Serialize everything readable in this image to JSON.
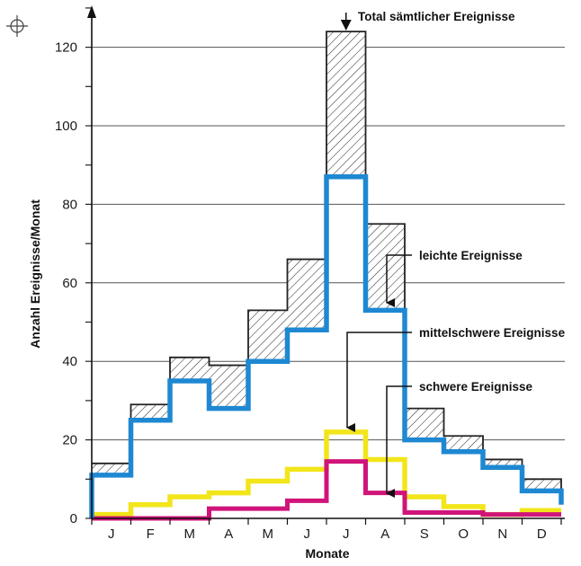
{
  "chart_data": {
    "type": "line",
    "title": "",
    "xlabel": "Monate",
    "ylabel": "Anzahl Ereignisse/Monat",
    "categories": [
      "J",
      "F",
      "M",
      "A",
      "M",
      "J",
      "J",
      "A",
      "S",
      "O",
      "N",
      "D"
    ],
    "ylim": [
      0,
      130
    ],
    "yticks": [
      0,
      20,
      40,
      60,
      80,
      100,
      120
    ],
    "grid": true,
    "series": [
      {
        "name": "Total sämtlicher Ereignisse",
        "style": "hatched-step",
        "color": "#222222",
        "values": [
          14,
          29,
          41,
          39,
          53,
          66,
          124,
          75,
          28,
          21,
          15,
          10
        ]
      },
      {
        "name": "leichte Ereignisse",
        "style": "step",
        "color": "#1e88d2",
        "values": [
          11,
          25,
          35,
          28,
          40,
          48,
          87,
          53,
          20,
          17,
          13,
          7
        ]
      },
      {
        "name": "mittelschwere Ereignisse",
        "style": "step",
        "color": "#f2e51a",
        "values": [
          1,
          3.5,
          5.5,
          6.5,
          9.5,
          12.5,
          22,
          15,
          5.5,
          3,
          1,
          2
        ]
      },
      {
        "name": "schwere Ereignisse",
        "style": "step",
        "color": "#d0147a",
        "values": [
          0,
          0,
          0,
          2.5,
          2.5,
          4.5,
          14.5,
          6.5,
          1.5,
          1.5,
          1,
          1
        ]
      }
    ]
  },
  "icon": "crosshair-register-icon"
}
